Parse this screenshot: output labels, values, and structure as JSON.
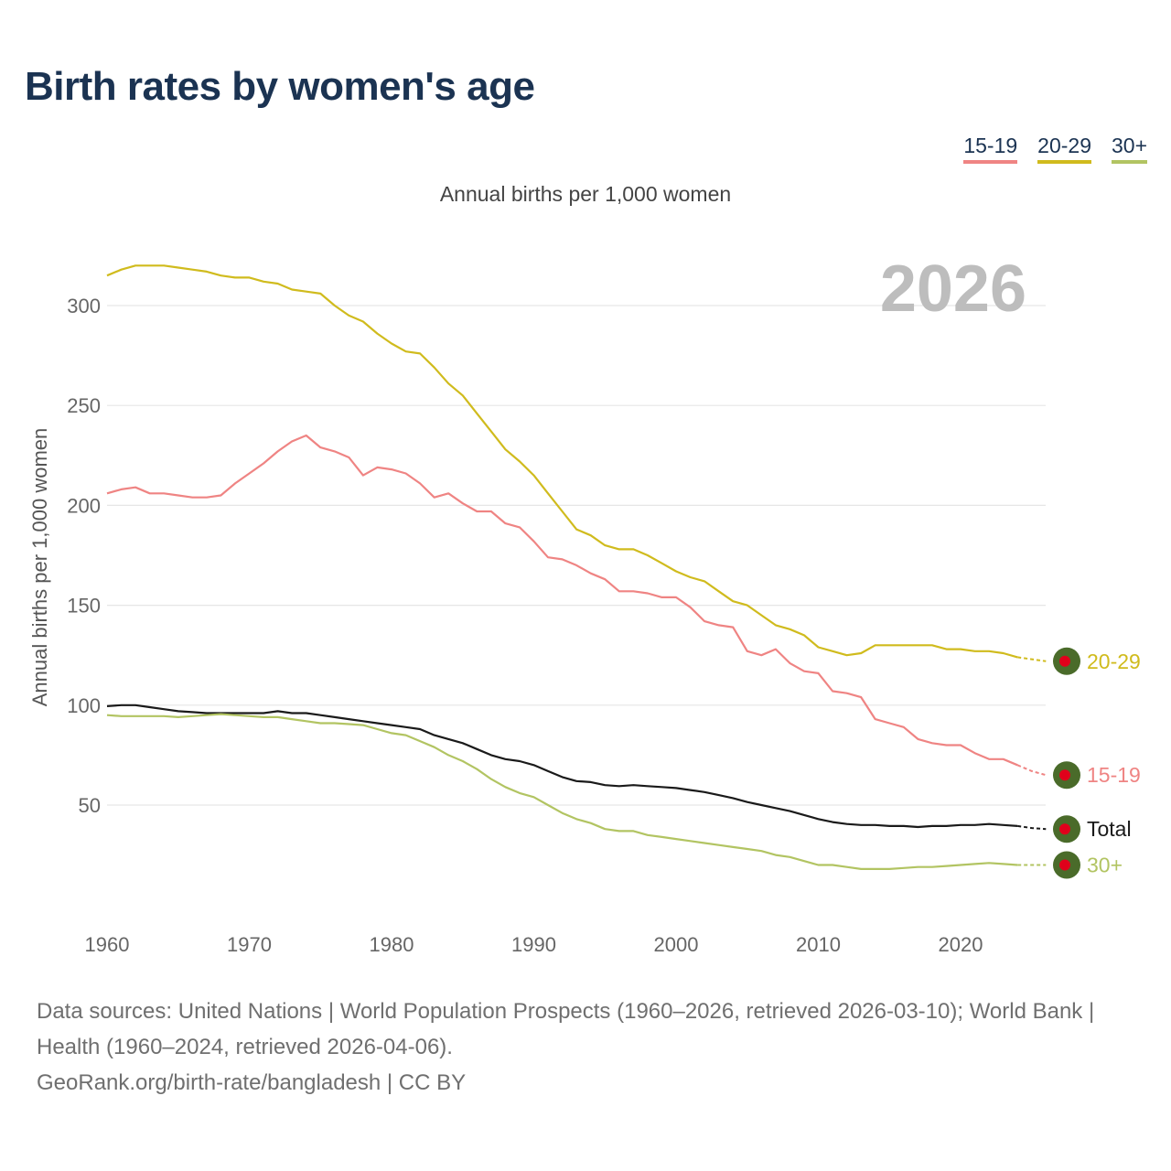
{
  "title": "Birth rates by women's age",
  "legend": [
    {
      "label": "15-19",
      "color": "#ef8483"
    },
    {
      "label": "20-29",
      "color": "#d0bb1d"
    },
    {
      "label": "30+",
      "color": "#b2c462"
    }
  ],
  "footer": {
    "sources": "Data sources: United Nations | World Population Prospects (1960–2026, retrieved 2026-03-10); World Bank | Health (1960–2024, retrieved 2026-04-06).",
    "credit": "GeoRank.org/birth-rate/bangladesh | CC BY"
  },
  "chart_data": {
    "type": "line",
    "title": "Annual births per 1,000 women",
    "ylabel": "Annual births per 1,000 women",
    "xlabel": "",
    "year_label": "2026",
    "xlim": [
      1960,
      2026
    ],
    "ylim": [
      0,
      330
    ],
    "xticks": [
      1960,
      1970,
      1980,
      1990,
      2000,
      2010,
      2020
    ],
    "yticks": [
      50,
      100,
      150,
      200,
      250,
      300
    ],
    "grid": true,
    "legend_position": "top-right",
    "marker_color": "#4a6b2a",
    "marker_dot_color": "#e0001b",
    "solid_until": 2024,
    "x_start": 1960,
    "series": [
      {
        "name": "20-29",
        "color": "#d0bb1d",
        "values": [
          315,
          318,
          320,
          320,
          320,
          319,
          318,
          317,
          315,
          314,
          314,
          312,
          311,
          308,
          307,
          306,
          300,
          295,
          292,
          286,
          281,
          277,
          276,
          269,
          261,
          255,
          246,
          237,
          228,
          222,
          215,
          206,
          197,
          188,
          185,
          180,
          178,
          178,
          175,
          171,
          167,
          164,
          162,
          157,
          152,
          150,
          145,
          140,
          138,
          135,
          129,
          127,
          125,
          126,
          130,
          130,
          130,
          130,
          130,
          128,
          128,
          127,
          127,
          126,
          124,
          123,
          122
        ]
      },
      {
        "name": "15-19",
        "color": "#ef8483",
        "values": [
          206,
          208,
          209,
          206,
          206,
          205,
          204,
          204,
          205,
          211,
          216,
          221,
          227,
          232,
          235,
          229,
          227,
          224,
          215,
          219,
          218,
          216,
          211,
          204,
          206,
          201,
          197,
          197,
          191,
          189,
          182,
          174,
          173,
          170,
          166,
          163,
          157,
          157,
          156,
          154,
          154,
          149,
          142,
          140,
          139,
          127,
          125,
          128,
          121,
          117,
          116,
          107,
          106,
          104,
          93,
          91,
          89,
          83,
          81,
          80,
          80,
          76,
          73,
          73,
          70,
          67,
          65
        ]
      },
      {
        "name": "Total",
        "color": "#1a1a1a",
        "values": [
          99.5,
          100,
          100,
          99,
          98,
          97,
          96.5,
          96,
          96,
          96,
          96,
          96,
          97,
          96,
          96,
          95,
          94,
          93,
          92,
          91,
          90,
          89,
          88,
          85,
          83,
          81,
          78,
          75,
          73,
          72,
          70,
          67,
          64,
          62,
          61.5,
          60,
          59.5,
          60,
          59.5,
          59,
          58.5,
          57.5,
          56.5,
          55,
          53.5,
          51.5,
          50,
          48.5,
          47,
          45,
          43,
          41.5,
          40.5,
          40,
          40,
          39.5,
          39.5,
          39,
          39.5,
          39.5,
          40,
          40,
          40.5,
          40,
          39.5,
          38.5,
          38
        ]
      },
      {
        "name": "30+",
        "color": "#b2c462",
        "values": [
          95,
          94.5,
          94.5,
          94.5,
          94.5,
          94,
          94.5,
          95,
          95.5,
          95,
          94.5,
          94,
          94,
          93,
          92,
          91,
          91,
          90.5,
          90,
          88,
          86,
          85,
          82,
          79,
          75,
          72,
          68,
          63,
          59,
          56,
          54,
          50,
          46,
          43,
          41,
          38,
          37,
          37,
          35,
          34,
          33,
          32,
          31,
          30,
          29,
          28,
          27,
          25,
          24,
          22,
          20,
          20,
          19,
          18,
          18,
          18,
          18.5,
          19,
          19,
          19.5,
          20,
          20.5,
          21,
          20.5,
          20,
          20,
          20
        ]
      }
    ]
  }
}
